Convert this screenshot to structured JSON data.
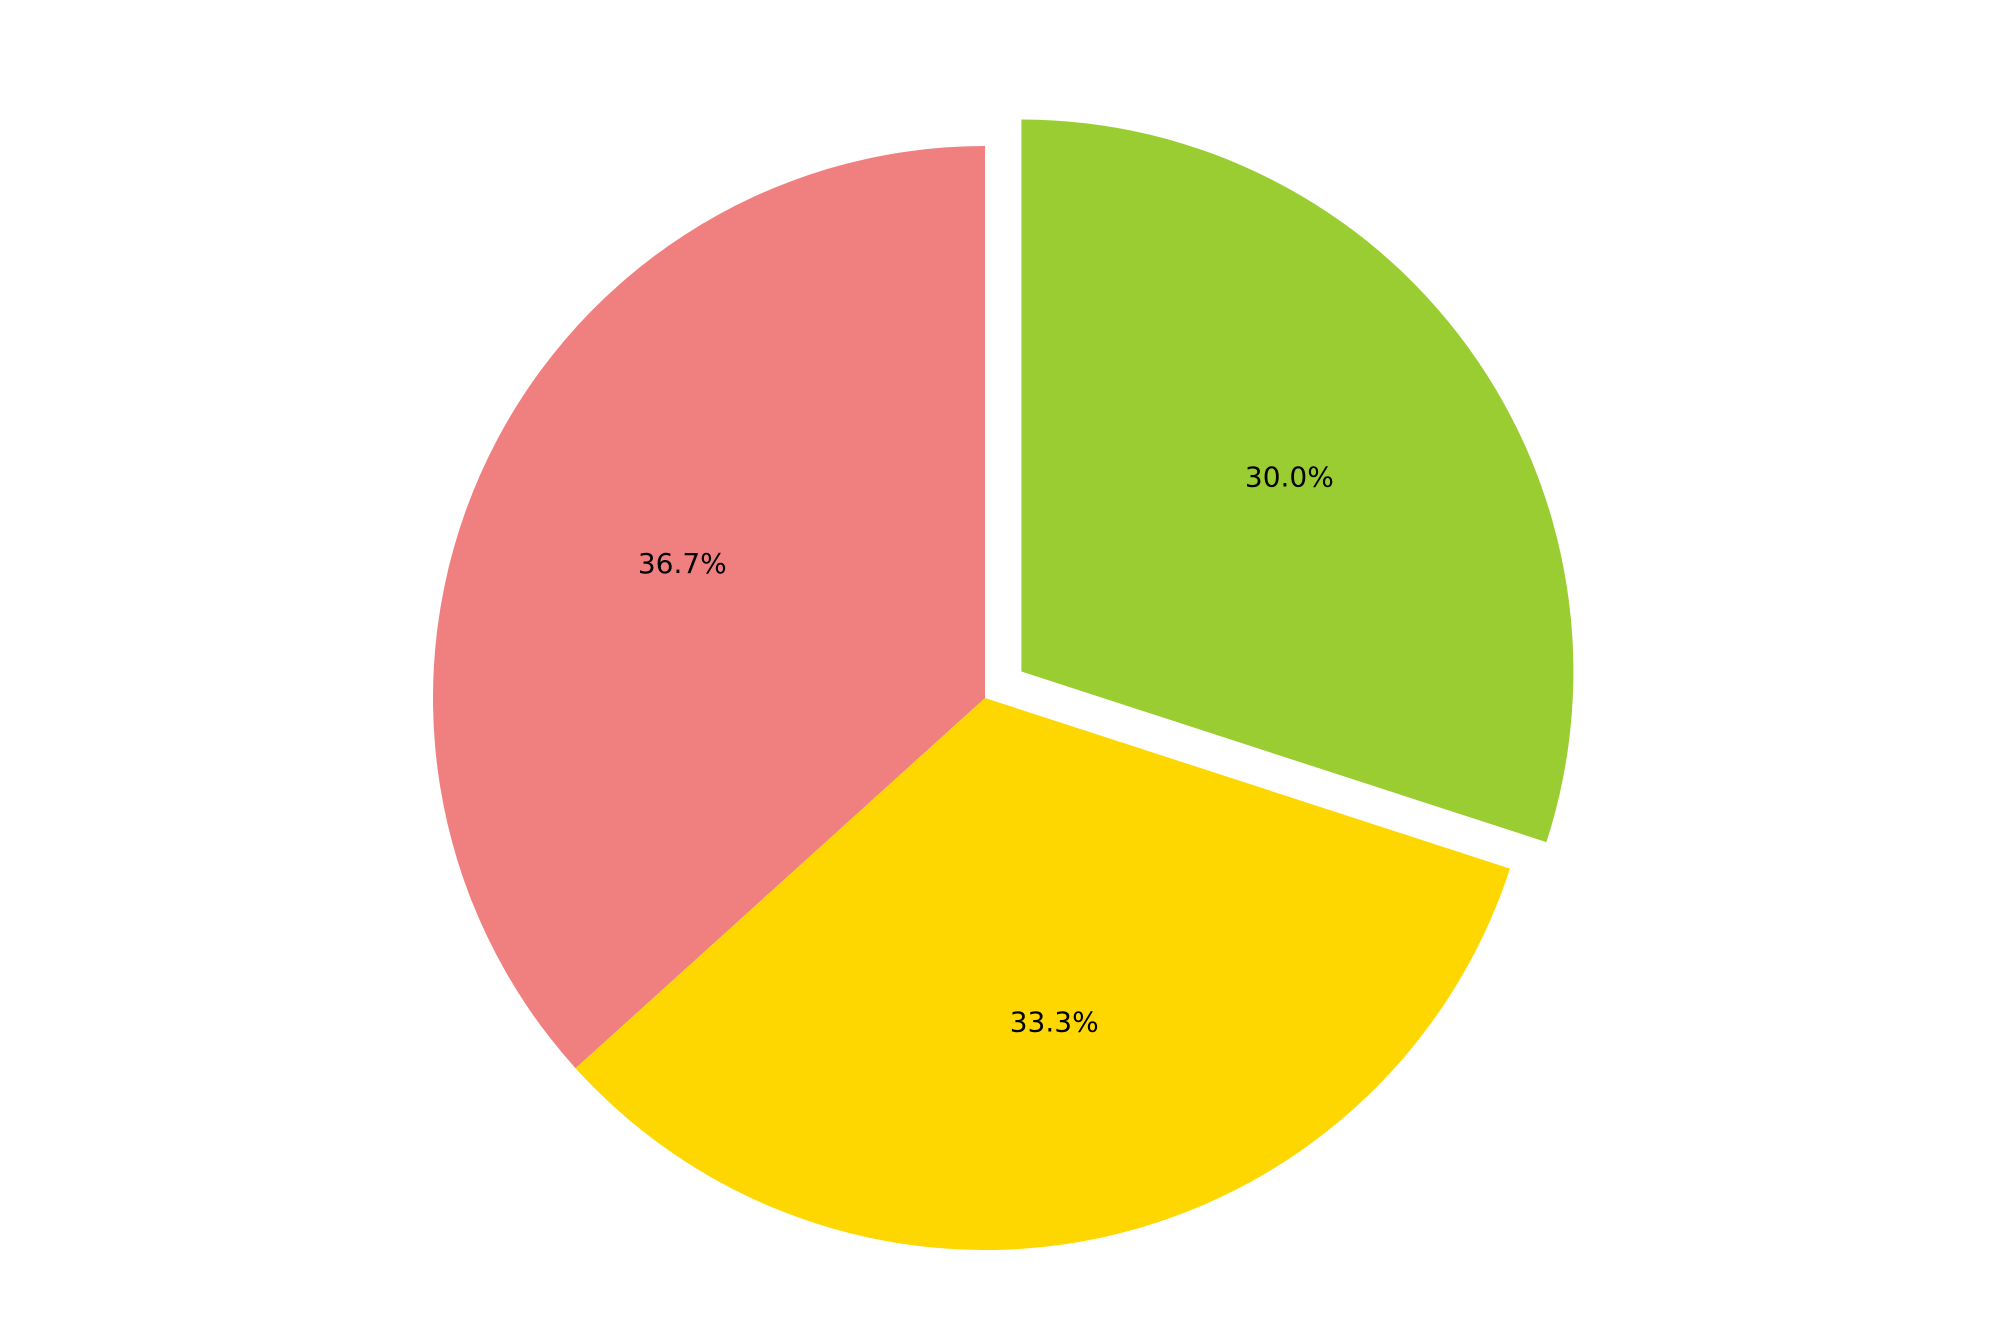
{
  "chart_data": {
    "type": "pie",
    "title": "",
    "start_angle_deg": 90,
    "direction": "clockwise",
    "slices": [
      {
        "value": 30.0,
        "label": "30.0%",
        "color": "#9ACD32",
        "exploded": true
      },
      {
        "value": 33.3,
        "label": "33.3%",
        "color": "#FFD700",
        "exploded": false
      },
      {
        "value": 36.7,
        "label": "36.7%",
        "color": "#F08080",
        "exploded": false
      }
    ]
  }
}
